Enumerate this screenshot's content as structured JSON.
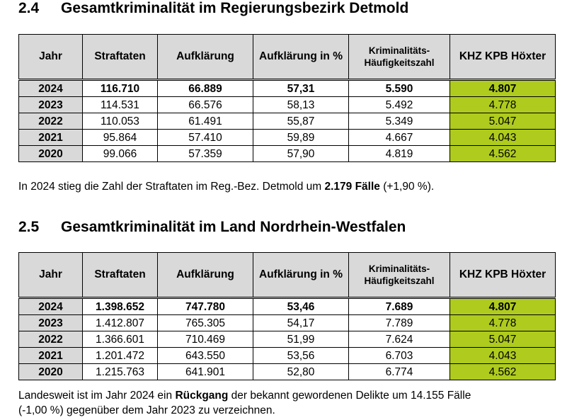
{
  "section_24": {
    "number": "2.4",
    "title": "Gesamtkriminalität im Regierungsbezirk Detmold",
    "headers": [
      "Jahr",
      "Straftaten",
      "Aufklärung",
      "Aufklärung in %",
      "Kriminalitäts-Häufigkeitszahl",
      "KHZ KPB Höxter"
    ],
    "rows": [
      [
        "2024",
        "116.710",
        "66.889",
        "57,31",
        "5.590",
        "4.807"
      ],
      [
        "2023",
        "114.531",
        "66.576",
        "58,13",
        "5.492",
        "4.778"
      ],
      [
        "2022",
        "110.053",
        "61.491",
        "55,87",
        "5.349",
        "5.047"
      ],
      [
        "2021",
        "95.864",
        "57.410",
        "59,89",
        "4.667",
        "4.043"
      ],
      [
        "2020",
        "99.066",
        "57.359",
        "57,90",
        "4.819",
        "4.562"
      ]
    ],
    "note": {
      "before": "In 2024 stieg die Zahl der Straftaten im Reg.-Bez. Detmold um ",
      "bold": "2.179 Fälle",
      "after": " (+1,90 %)."
    }
  },
  "section_25": {
    "number": "2.5",
    "title": "Gesamtkriminalität im Land Nordrhein-Westfalen",
    "headers": [
      "Jahr",
      "Straftaten",
      "Aufklärung",
      "Aufklärung in %",
      "Kriminalitäts-Häufigkeitszahl",
      "KHZ KPB Höxter"
    ],
    "rows": [
      [
        "2024",
        "1.398.652",
        "747.780",
        "53,46",
        "7.689",
        "4.807"
      ],
      [
        "2023",
        "1.412.807",
        "765.305",
        "54,17",
        "7.789",
        "4.778"
      ],
      [
        "2022",
        "1.366.601",
        "710.469",
        "51,99",
        "7.624",
        "5.047"
      ],
      [
        "2021",
        "1.201.472",
        "643.550",
        "53,56",
        "6.703",
        "4.043"
      ],
      [
        "2020",
        "1.215.763",
        "641.901",
        "52,80",
        "6.774",
        "4.562"
      ]
    ],
    "note": {
      "before": "Landesweit ist im Jahr 2024 ein ",
      "bold": "Rückgang",
      "after_line1": " der bekannt gewordenen Delikte um 14.155 Fälle",
      "line2": "(-1,00 %) gegenüber dem Jahr 2023 zu verzeichnen."
    }
  },
  "colors": {
    "header_gray": "#d9d9d9",
    "khz_green": "#aecb1e"
  }
}
